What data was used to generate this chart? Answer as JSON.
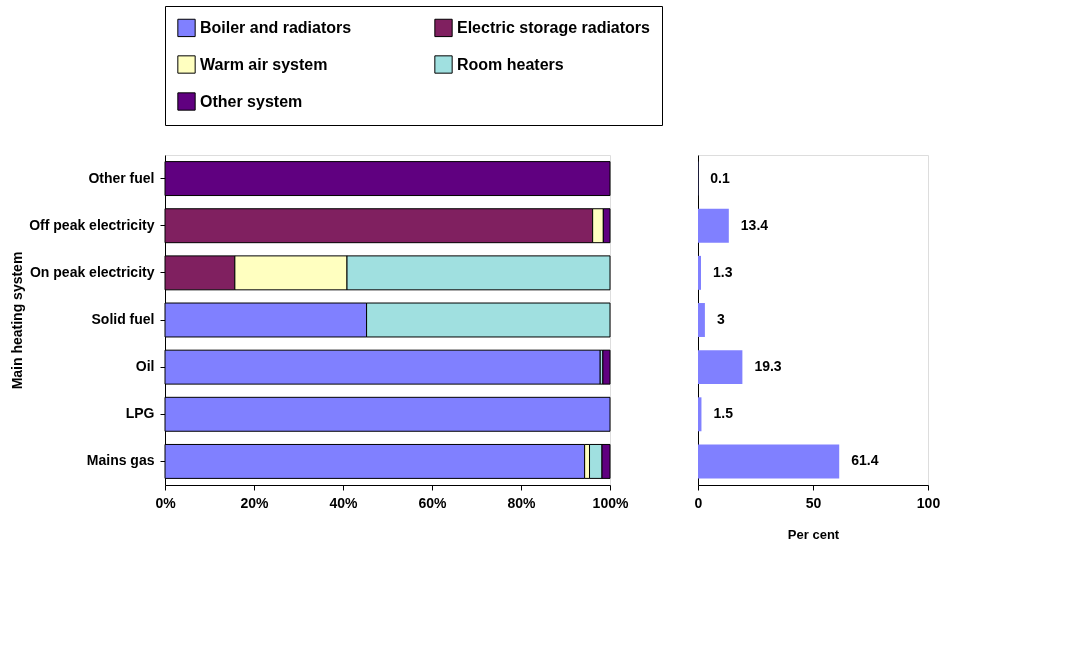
{
  "chart_data": [
    {
      "type": "bar",
      "orientation": "horizontal",
      "stacked": true,
      "ylabel": "Main heating system",
      "legend": "top",
      "grid": false,
      "categories": [
        "Other fuel",
        "Off peak electricity",
        "On peak electricity",
        "Solid fuel",
        "Oil",
        "LPG",
        "Mains gas"
      ],
      "xlim": [
        0,
        100
      ],
      "xticks": [
        {
          "value": 0,
          "label": "0%"
        },
        {
          "value": 20,
          "label": "20%"
        },
        {
          "value": 40,
          "label": "40%"
        },
        {
          "value": 60,
          "label": "60%"
        },
        {
          "value": 80,
          "label": "80%"
        },
        {
          "value": 100,
          "label": "100%"
        }
      ],
      "series": [
        {
          "name": "Boiler and radiators",
          "color": "#8080ff",
          "values": [
            null,
            null,
            null,
            45.3,
            97.8,
            100,
            94.3
          ]
        },
        {
          "name": "Electric storage radiators",
          "color": "#802060",
          "values": [
            null,
            96.1,
            15.7,
            null,
            null,
            null,
            null
          ]
        },
        {
          "name": "Warm air system",
          "color": "#ffffc0",
          "values": [
            null,
            2.4,
            25.2,
            null,
            null,
            null,
            1.1
          ]
        },
        {
          "name": "Room heaters",
          "color": "#a0e0e0",
          "values": [
            null,
            null,
            59.1,
            54.7,
            0.6,
            null,
            2.8
          ]
        },
        {
          "name": "Other system",
          "color": "#600080",
          "values": [
            100,
            1.5,
            null,
            null,
            1.6,
            null,
            1.8
          ]
        }
      ]
    },
    {
      "type": "bar",
      "orientation": "horizontal",
      "xlabel": "Per cent",
      "grid": false,
      "tick_labels": "x",
      "data_labels": true,
      "categories": [
        null,
        null,
        null,
        null,
        null,
        null,
        null
      ],
      "xlim": [
        0,
        100
      ],
      "xticks": [
        0,
        50,
        100
      ],
      "series": [
        {
          "color": "#8080ff",
          "values": [
            0.1,
            13.4,
            1.3,
            3,
            19.3,
            1.5,
            61.4
          ]
        }
      ]
    }
  ]
}
